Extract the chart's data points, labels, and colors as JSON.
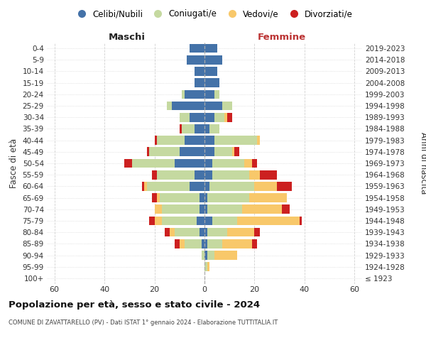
{
  "age_groups": [
    "100+",
    "95-99",
    "90-94",
    "85-89",
    "80-84",
    "75-79",
    "70-74",
    "65-69",
    "60-64",
    "55-59",
    "50-54",
    "45-49",
    "40-44",
    "35-39",
    "30-34",
    "25-29",
    "20-24",
    "15-19",
    "10-14",
    "5-9",
    "0-4"
  ],
  "birth_years": [
    "≤ 1923",
    "1924-1928",
    "1929-1933",
    "1934-1938",
    "1939-1943",
    "1944-1948",
    "1949-1953",
    "1954-1958",
    "1959-1963",
    "1964-1968",
    "1969-1973",
    "1974-1978",
    "1979-1983",
    "1984-1988",
    "1989-1993",
    "1994-1998",
    "1999-2003",
    "2004-2008",
    "2009-2013",
    "2014-2018",
    "2019-2023"
  ],
  "colors": {
    "celibi": "#4472a8",
    "coniugati": "#c5d9a0",
    "vedovi": "#f8c86a",
    "divorziati": "#cc2020"
  },
  "legend_labels": [
    "Celibi/Nubili",
    "Coniugati/e",
    "Vedovi/e",
    "Divorziati/e"
  ],
  "title": "Popolazione per età, sesso e stato civile - 2024",
  "subtitle": "COMUNE DI ZAVATTARELLO (PV) - Dati ISTAT 1° gennaio 2024 - Elaborazione TUTTITALIA.IT",
  "label_maschi": "Maschi",
  "label_femmine": "Femmine",
  "ylabel_left": "Fasce di età",
  "ylabel_right": "Anni di nascita",
  "males": {
    "celibi": [
      0,
      0,
      0,
      1,
      2,
      3,
      2,
      2,
      6,
      4,
      12,
      10,
      8,
      4,
      6,
      13,
      8,
      4,
      4,
      7,
      6
    ],
    "coniugati": [
      0,
      0,
      1,
      7,
      10,
      14,
      15,
      16,
      17,
      15,
      17,
      12,
      11,
      5,
      4,
      2,
      1,
      0,
      0,
      0,
      0
    ],
    "vedovi": [
      0,
      0,
      0,
      2,
      2,
      3,
      3,
      1,
      1,
      0,
      0,
      0,
      0,
      0,
      0,
      0,
      0,
      0,
      0,
      0,
      0
    ],
    "divorziati": [
      0,
      0,
      0,
      2,
      2,
      2,
      0,
      2,
      1,
      2,
      3,
      1,
      1,
      1,
      0,
      0,
      0,
      0,
      0,
      0,
      0
    ]
  },
  "females": {
    "nubili": [
      0,
      0,
      1,
      1,
      1,
      3,
      1,
      1,
      2,
      3,
      3,
      4,
      4,
      2,
      4,
      7,
      4,
      6,
      5,
      7,
      5
    ],
    "coniugate": [
      0,
      1,
      3,
      6,
      8,
      10,
      14,
      17,
      18,
      15,
      13,
      7,
      17,
      4,
      4,
      4,
      2,
      0,
      0,
      0,
      0
    ],
    "vedove": [
      0,
      1,
      9,
      12,
      11,
      25,
      16,
      15,
      9,
      4,
      3,
      1,
      1,
      0,
      1,
      0,
      0,
      0,
      0,
      0,
      0
    ],
    "divorziate": [
      0,
      0,
      0,
      2,
      2,
      1,
      3,
      0,
      6,
      7,
      2,
      2,
      0,
      0,
      2,
      0,
      0,
      0,
      0,
      0,
      0
    ]
  },
  "xlim": 63,
  "bg_color": "#ffffff",
  "grid_color": "#d0d0d0"
}
